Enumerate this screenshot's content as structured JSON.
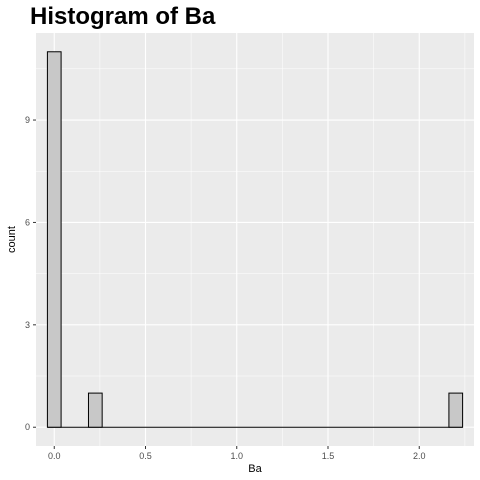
{
  "chart_data": {
    "type": "bar",
    "title": "Histogram of Ba",
    "xlabel": "Ba",
    "ylabel": "count",
    "xlim": [
      -0.1,
      2.3
    ],
    "ylim": [
      -0.55,
      11.55
    ],
    "xticks": [
      0.0,
      0.5,
      1.0,
      1.5,
      2.0
    ],
    "xtick_labels": [
      "0.0",
      "0.5",
      "1.0",
      "1.5",
      "2.0"
    ],
    "yticks": [
      0,
      3,
      6,
      9
    ],
    "ytick_labels": [
      "0",
      "3",
      "6",
      "9"
    ],
    "bin_width": 0.075,
    "bins": [
      {
        "center": 0.0,
        "count": 11
      },
      {
        "center": 0.225,
        "count": 1
      },
      {
        "center": 2.2,
        "count": 1
      }
    ],
    "bin_range": [
      -0.0375,
      2.2375
    ],
    "grid": true,
    "colors": {
      "panel_bg": "#ebebeb",
      "grid_major": "#ffffff",
      "bar_fill": "#c8c8c8",
      "bar_stroke": "#000000"
    }
  }
}
